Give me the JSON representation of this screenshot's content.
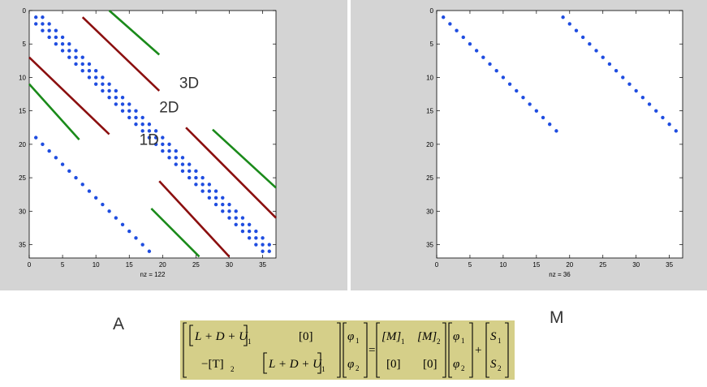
{
  "matrix_a": {
    "dim": 37,
    "tick_values": [
      0,
      5,
      10,
      15,
      20,
      25,
      30,
      35
    ],
    "nz_label": "nz = 122",
    "level_labels": [
      {
        "text": "3D",
        "col": 22.5,
        "row": 11.6
      },
      {
        "text": "2D",
        "col": 19.5,
        "row": 15.2
      },
      {
        "text": "1D",
        "col": 16.5,
        "row": 20.1
      }
    ],
    "line_colors": {
      "green": "#1a8a1a",
      "darkred": "#8b0f0f"
    }
  },
  "matrix_m": {
    "dim": 37,
    "tick_values": [
      0,
      5,
      10,
      15,
      20,
      25,
      30,
      35
    ],
    "nz_label": "nz = 36"
  },
  "labels": {
    "a": "A",
    "m": "M"
  },
  "marker_color": "#1f4de0",
  "equation": {
    "lhs_r1c1": "L + D + U",
    "lhs_r1c1_sub": "1",
    "lhs_r1c2": "0",
    "lhs_r2c1": "−[T]",
    "lhs_r2c1_sub": "2",
    "lhs_r2c2": "L + D + U",
    "lhs_r2c2_sub": "1",
    "phi": "φ",
    "phi_sub1": "1",
    "phi_sub2": "2",
    "equals": "=",
    "rhs_r1c1": "[M]",
    "rhs_r1c1_sub": "1",
    "rhs_r1c2": "[M]",
    "rhs_r1c2_sub": "2",
    "rhs_r2c1": "[0]",
    "rhs_r2c2": "[0]",
    "plus": "+",
    "s": "S",
    "s_sub1": "1",
    "s_sub2": "2"
  }
}
